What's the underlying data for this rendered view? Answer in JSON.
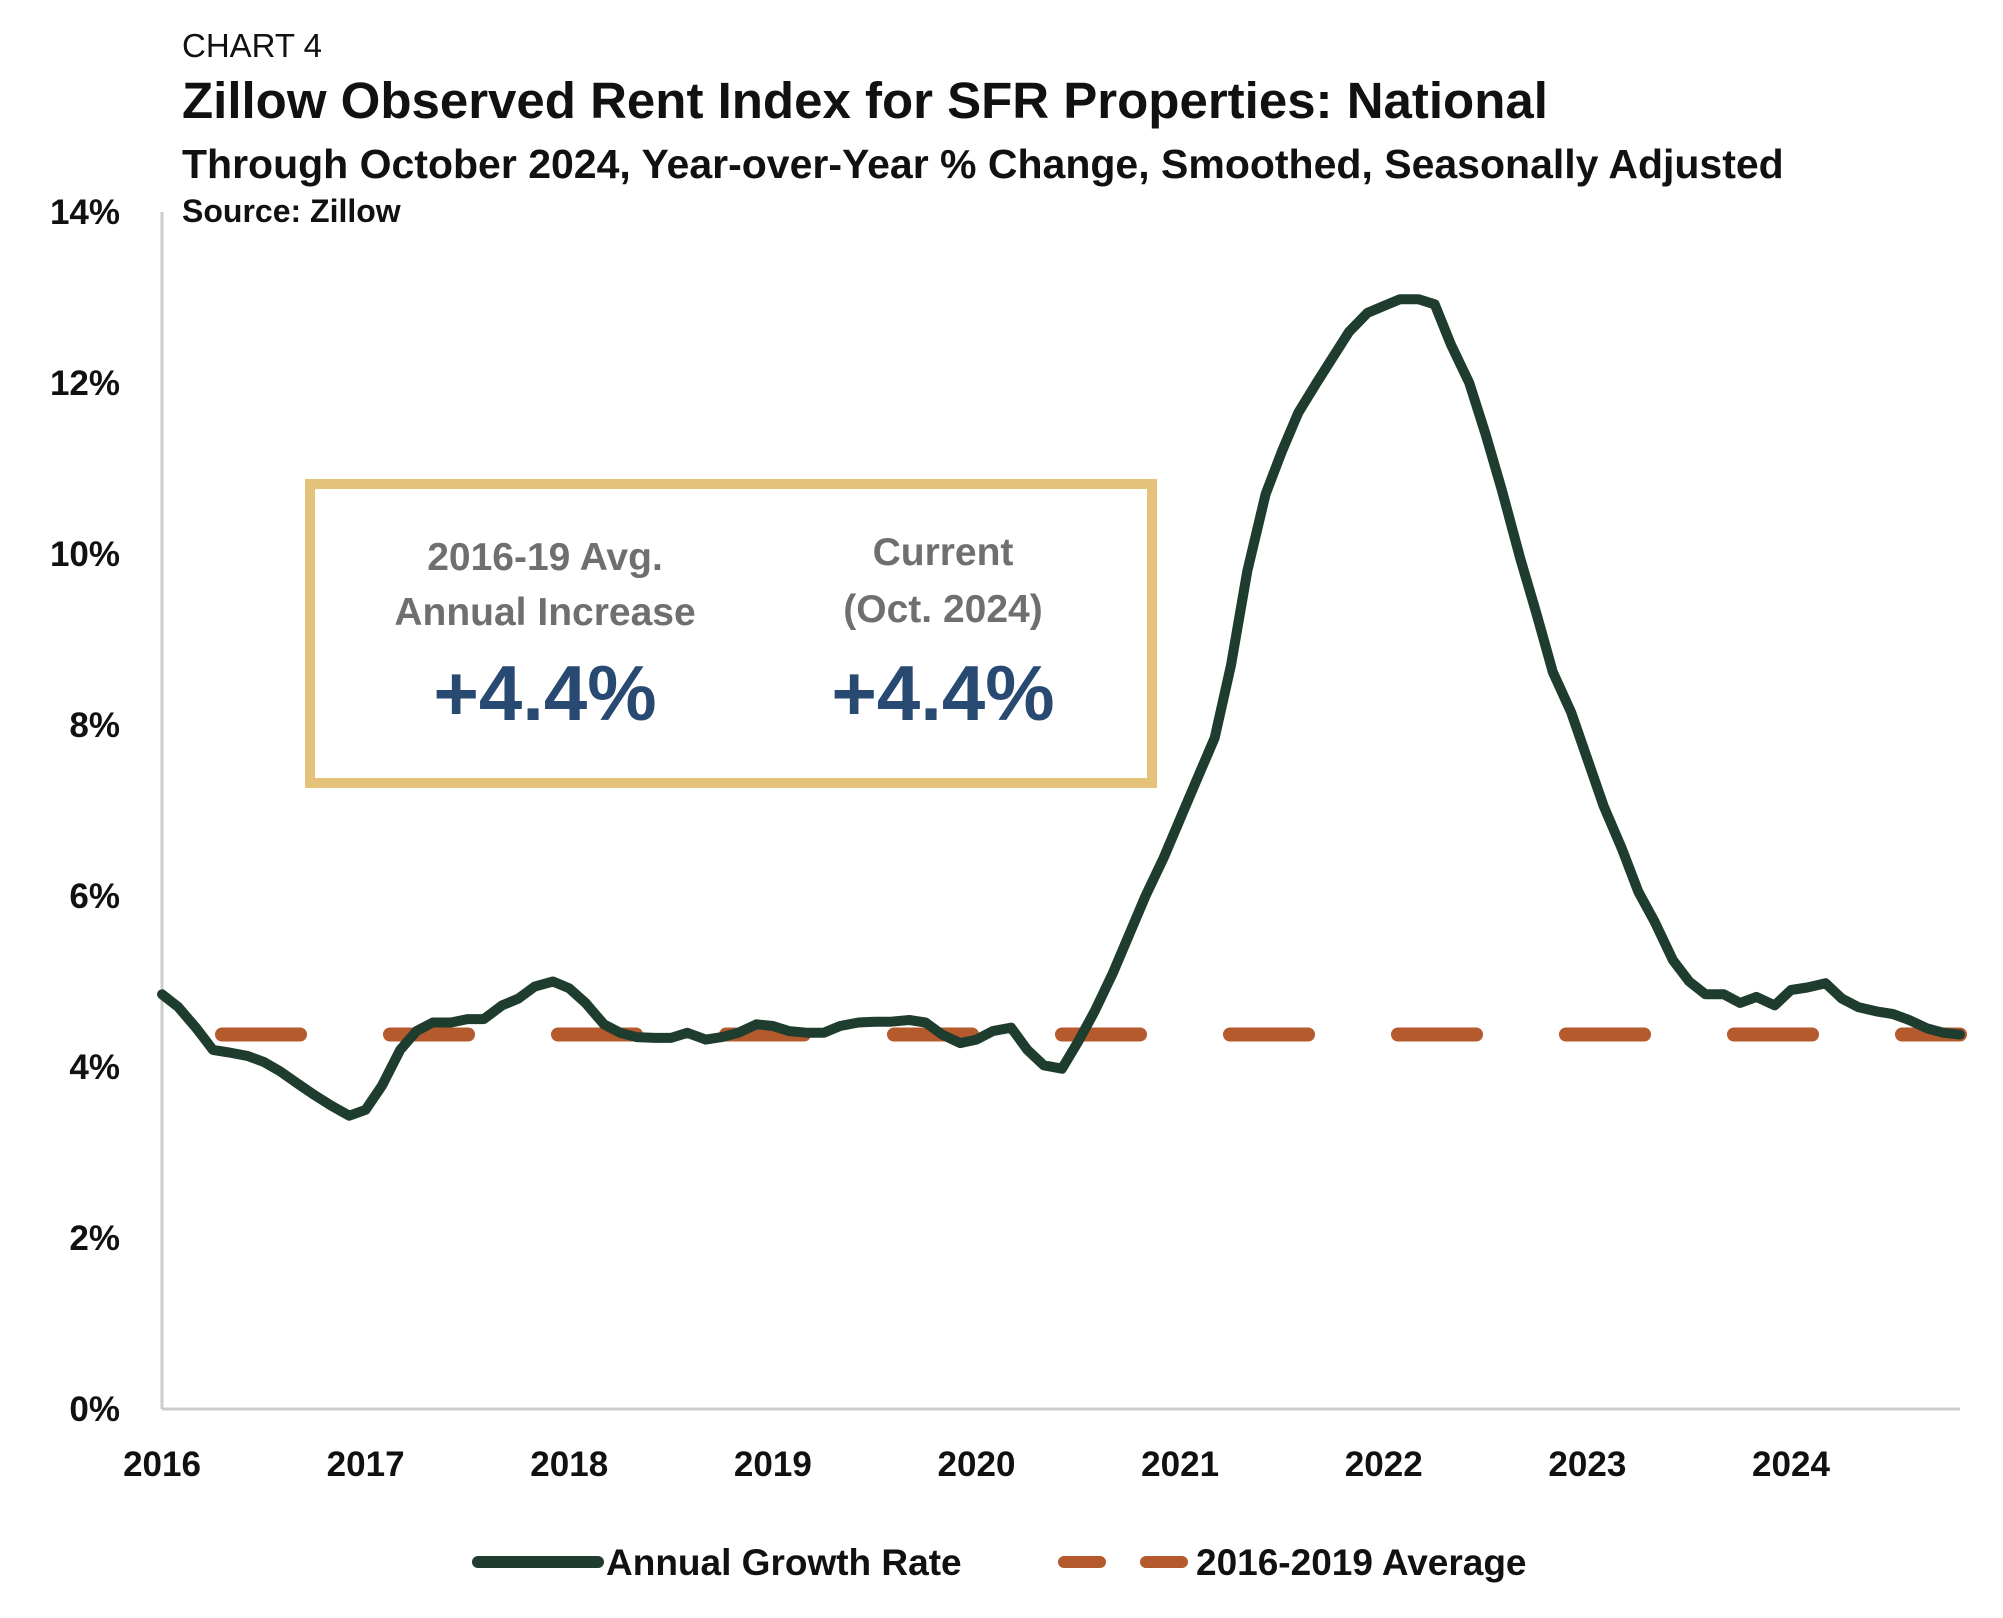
{
  "header": {
    "kicker": "CHART 4",
    "title": "Zillow Observed Rent Index for SFR Properties: National",
    "subtitle": "Through October 2024, Year-over-Year % Change, Smoothed, Seasonally Adjusted",
    "source": "Source: Zillow"
  },
  "callout": {
    "left": {
      "line1": "2016-19 Avg.",
      "line2": "Annual Increase",
      "value": "+4.4%"
    },
    "right": {
      "line1": "Current",
      "line2": "(Oct. 2024)",
      "value": "+4.4%"
    }
  },
  "colors": {
    "series_line": "#1f3d2e",
    "average_line": "#b45a2d",
    "callout_border": "#e5c27a",
    "callout_value": "#284a72",
    "axis": "#cccccc"
  },
  "chart_data": {
    "type": "line",
    "x_unit": "year",
    "xlim": [
      2016,
      2024.83
    ],
    "ylim": [
      0,
      14
    ],
    "x_ticks": [
      2016,
      2017,
      2018,
      2019,
      2020,
      2021,
      2022,
      2023,
      2024
    ],
    "x_tick_labels": [
      "2016",
      "2017",
      "2018",
      "2019",
      "2020",
      "2021",
      "2022",
      "2023",
      "2024"
    ],
    "y_ticks": [
      0,
      2,
      4,
      6,
      8,
      10,
      12,
      14
    ],
    "y_tick_labels": [
      "0%",
      "2%",
      "4%",
      "6%",
      "8%",
      "10%",
      "12%",
      "14%"
    ],
    "grid": false,
    "legend_position": "bottom",
    "series": [
      {
        "name": "Annual Growth Rate",
        "style": "solid",
        "x": [
          2016.0,
          2016.08,
          2016.17,
          2016.25,
          2016.33,
          2016.42,
          2016.5,
          2016.58,
          2016.67,
          2016.75,
          2016.83,
          2016.92,
          2017.0,
          2017.08,
          2017.17,
          2017.25,
          2017.33,
          2017.42,
          2017.5,
          2017.58,
          2017.67,
          2017.75,
          2017.83,
          2017.92,
          2018.0,
          2018.08,
          2018.17,
          2018.25,
          2018.33,
          2018.42,
          2018.5,
          2018.58,
          2018.67,
          2018.75,
          2018.83,
          2018.92,
          2019.0,
          2019.08,
          2019.17,
          2019.25,
          2019.33,
          2019.42,
          2019.5,
          2019.58,
          2019.67,
          2019.75,
          2019.83,
          2019.92,
          2020.0,
          2020.08,
          2020.17,
          2020.25,
          2020.33,
          2020.42,
          2020.5,
          2020.58,
          2020.67,
          2020.75,
          2020.83,
          2020.92,
          2021.0,
          2021.08,
          2021.17,
          2021.25,
          2021.33,
          2021.42,
          2021.5,
          2021.58,
          2021.67,
          2021.75,
          2021.83,
          2021.92,
          2022.0,
          2022.08,
          2022.17,
          2022.25,
          2022.33,
          2022.42,
          2022.5,
          2022.58,
          2022.67,
          2022.75,
          2022.83,
          2022.92,
          2023.0,
          2023.08,
          2023.17,
          2023.25,
          2023.33,
          2023.42,
          2023.5,
          2023.58,
          2023.67,
          2023.75,
          2023.83,
          2023.92,
          2024.0,
          2024.08,
          2024.17,
          2024.25,
          2024.33,
          2024.42,
          2024.5,
          2024.58,
          2024.67,
          2024.75,
          2024.83
        ],
        "values": [
          4.85,
          4.7,
          4.45,
          4.2,
          4.17,
          4.13,
          4.06,
          3.95,
          3.8,
          3.67,
          3.55,
          3.43,
          3.5,
          3.78,
          4.2,
          4.42,
          4.52,
          4.52,
          4.56,
          4.56,
          4.72,
          4.8,
          4.94,
          5.0,
          4.92,
          4.75,
          4.5,
          4.4,
          4.35,
          4.34,
          4.34,
          4.4,
          4.32,
          4.35,
          4.4,
          4.5,
          4.48,
          4.42,
          4.4,
          4.4,
          4.48,
          4.52,
          4.53,
          4.53,
          4.55,
          4.52,
          4.38,
          4.28,
          4.32,
          4.42,
          4.46,
          4.2,
          4.02,
          3.98,
          4.3,
          4.65,
          5.1,
          5.55,
          6.0,
          6.45,
          6.9,
          7.35,
          7.85,
          8.7,
          9.8,
          10.7,
          11.2,
          11.65,
          12.0,
          12.3,
          12.6,
          12.82,
          12.9,
          12.98,
          12.98,
          12.92,
          12.45,
          12.0,
          11.4,
          10.75,
          9.95,
          9.3,
          8.62,
          8.15,
          7.6,
          7.05,
          6.55,
          6.05,
          5.7,
          5.25,
          5.0,
          4.85,
          4.85,
          4.75,
          4.82,
          4.72,
          4.9,
          4.93,
          4.98,
          4.8,
          4.7,
          4.65,
          4.62,
          4.55,
          4.45,
          4.4,
          4.38
        ]
      },
      {
        "name": "2016-2019 Average",
        "style": "dashed",
        "x": [
          2016.0,
          2024.83
        ],
        "values": [
          4.38,
          4.38
        ]
      }
    ]
  }
}
